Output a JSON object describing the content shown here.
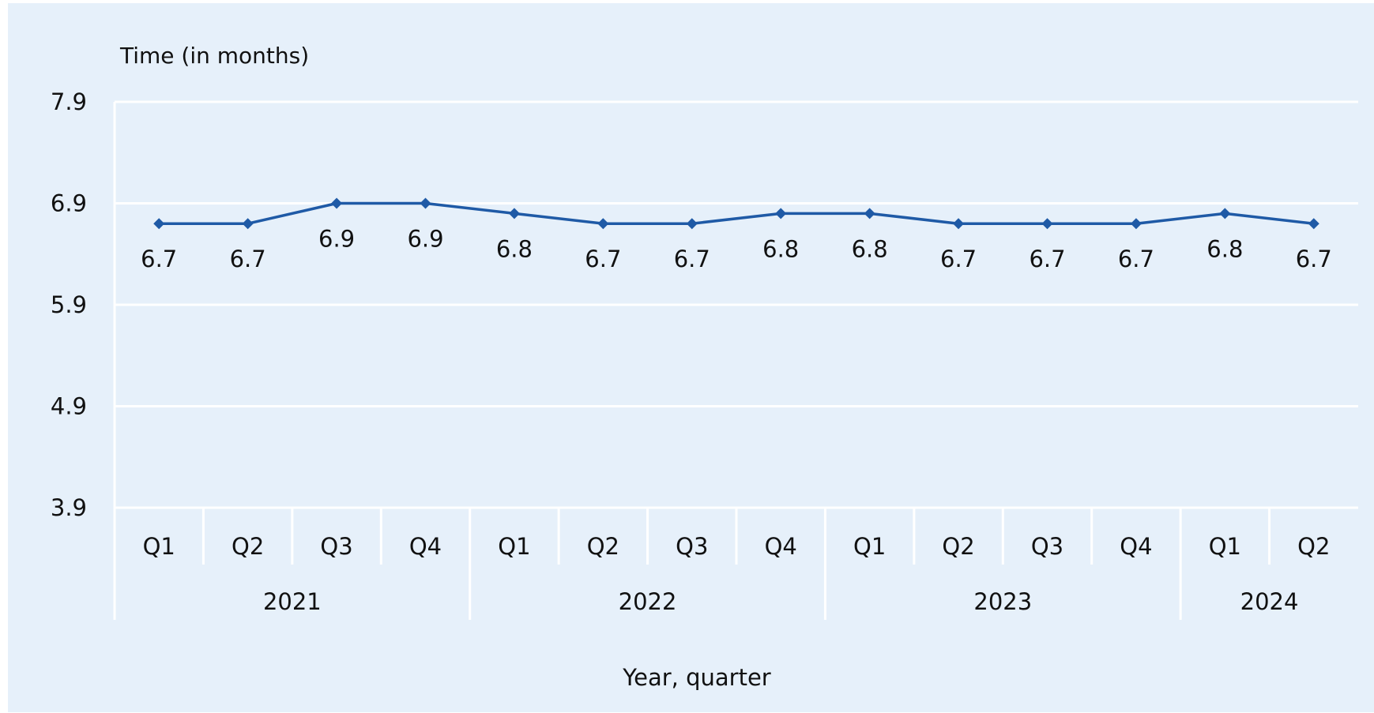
{
  "chart_data": {
    "type": "line",
    "ylabel": "Time (in months)",
    "xlabel": "Year, quarter",
    "ylim": [
      3.9,
      7.9
    ],
    "yticks": [
      "7.9",
      "6.9",
      "5.9",
      "4.9",
      "3.9"
    ],
    "grid": true,
    "categories": [
      "Q1",
      "Q2",
      "Q3",
      "Q4",
      "Q1",
      "Q2",
      "Q3",
      "Q4",
      "Q1",
      "Q2",
      "Q3",
      "Q4",
      "Q1",
      "Q2"
    ],
    "groups": [
      {
        "label": "2021",
        "count": 4
      },
      {
        "label": "2022",
        "count": 4
      },
      {
        "label": "2023",
        "count": 4
      },
      {
        "label": "2024",
        "count": 2
      }
    ],
    "values": [
      6.7,
      6.7,
      6.9,
      6.9,
      6.8,
      6.7,
      6.7,
      6.8,
      6.8,
      6.7,
      6.7,
      6.7,
      6.8,
      6.7
    ],
    "data_labels": [
      "6.7",
      "6.7",
      "6.9",
      "6.9",
      "6.8",
      "6.7",
      "6.7",
      "6.8",
      "6.8",
      "6.7",
      "6.7",
      "6.7",
      "6.8",
      "6.7"
    ],
    "line_color": "#1f5aa6",
    "background_color": "#e6f0fa",
    "grid_color": "#ffffff"
  }
}
